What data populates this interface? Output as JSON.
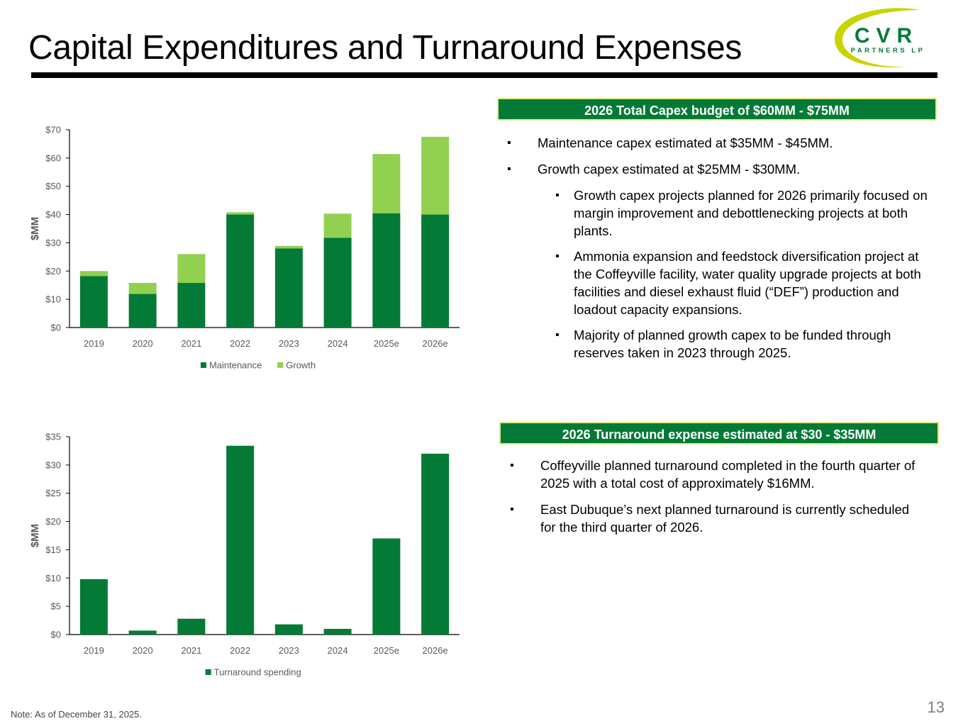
{
  "title": "Capital Expenditures and Turnaround Expenses",
  "logo": {
    "main": "CVR",
    "sub": "PARTNERS LP"
  },
  "colors": {
    "maintenance": "#047a37",
    "growth": "#92d050",
    "header_bg": "#047a37",
    "header_border": "#e4e88a",
    "text": "#000000",
    "axis": "#595959"
  },
  "capex_box": {
    "header": "2026 Total Capex budget of $60MM - $75MM",
    "bullets": [
      {
        "text": "Maintenance capex estimated at $35MM - $45MM.",
        "level": 1
      },
      {
        "text": "Growth capex estimated at $25MM - $30MM.",
        "level": 1
      },
      {
        "text": "Growth capex projects planned for 2026 primarily focused on margin improvement and debottlenecking projects at both plants.",
        "level": 2
      },
      {
        "text": "Ammonia expansion and feedstock diversification project at the Coffeyville facility, water quality upgrade projects at both facilities and diesel exhaust fluid (“DEF”) production and loadout capacity expansions.",
        "level": 2
      },
      {
        "text": "Majority of planned growth capex to be funded through reserves taken in 2023 through 2025.",
        "level": 2
      }
    ]
  },
  "turnaround_box": {
    "header": "2026 Turnaround expense estimated at $30 - $35MM",
    "bullets": [
      {
        "text": "Coffeyville planned turnaround completed in the fourth quarter of 2025 with a total cost of approximately $16MM.",
        "level": 1
      },
      {
        "text": "East Dubuque’s next planned turnaround is currently scheduled for the third quarter of 2026.",
        "level": 1
      }
    ]
  },
  "chart_data": [
    {
      "type": "bar",
      "stacked": true,
      "categories": [
        "2019",
        "2020",
        "2021",
        "2022",
        "2023",
        "2024",
        "2025e",
        "2026e"
      ],
      "series": [
        {
          "name": "Maintenance",
          "color": "#047a37",
          "values": [
            18.2,
            11.9,
            15.8,
            40.0,
            28.0,
            31.8,
            40.4,
            40.0
          ]
        },
        {
          "name": "Growth",
          "color": "#92d050",
          "values": [
            1.8,
            3.9,
            10.2,
            0.8,
            0.9,
            8.5,
            21.0,
            27.5
          ]
        }
      ],
      "ylabel": "$MM",
      "ylim": [
        0,
        70
      ],
      "yticks": [
        0,
        10,
        20,
        30,
        40,
        50,
        60,
        70
      ],
      "ytick_labels": [
        "$0",
        "$10",
        "$20",
        "$30",
        "$40",
        "$50",
        "$60",
        "$70"
      ],
      "legend": "bottom",
      "grid": false
    },
    {
      "type": "bar",
      "categories": [
        "2019",
        "2020",
        "2021",
        "2022",
        "2023",
        "2024",
        "2025e",
        "2026e"
      ],
      "series": [
        {
          "name": "Turnaround spending",
          "color": "#047a37",
          "values": [
            9.8,
            0.7,
            2.8,
            33.4,
            1.8,
            1.0,
            17.0,
            32.0
          ]
        }
      ],
      "ylabel": "$MM",
      "ylim": [
        0,
        35
      ],
      "yticks": [
        0,
        5,
        10,
        15,
        20,
        25,
        30,
        35
      ],
      "ytick_labels": [
        "$0",
        "$5",
        "$10",
        "$15",
        "$20",
        "$25",
        "$30",
        "$35"
      ],
      "legend": "bottom",
      "grid": false
    }
  ],
  "note": "Note:  As of December 31, 2025.",
  "page_number": "13"
}
